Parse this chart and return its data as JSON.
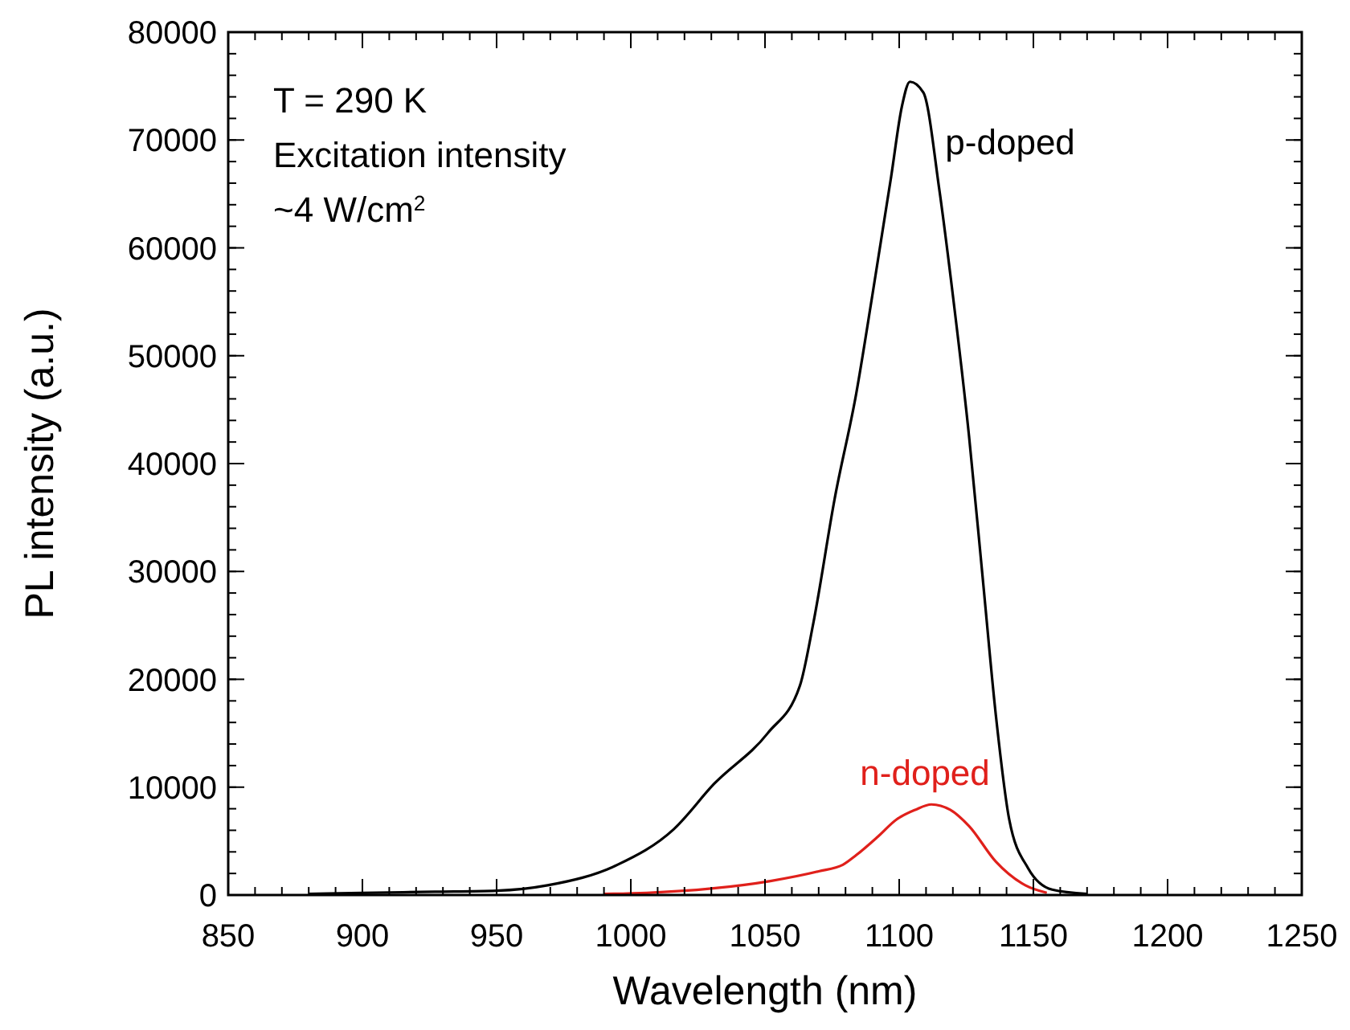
{
  "chart_data": {
    "type": "line",
    "xlabel": "Wavelength (nm)",
    "ylabel": "PL intensity (a.u.)",
    "xlim": [
      850,
      1250
    ],
    "xticks": [
      850,
      900,
      950,
      1000,
      1050,
      1100,
      1150,
      1200,
      1250
    ],
    "ylim": [
      0,
      80000
    ],
    "yticks": [
      0,
      10000,
      20000,
      30000,
      40000,
      50000,
      60000,
      70000,
      80000
    ],
    "grid": false,
    "legend": false,
    "marker": "none",
    "line_style": "solid",
    "annotations": [
      "T = 290 K",
      "Excitation intensity",
      "~4 W/cm$^{2}$"
    ],
    "series": [
      {
        "name": "p-doped",
        "color": "#000000",
        "x": [
          880,
          900,
          927,
          950,
          969,
          995,
          1016,
          1031,
          1051,
          1063,
          1068,
          1076,
          1084,
          1090,
          1097,
          1101,
          1104,
          1109,
          1115,
          1120,
          1126,
          1131,
          1136,
          1141,
          1148,
          1157,
          1170
        ],
        "values": [
          100,
          200,
          300,
          400,
          900,
          2800,
          6100,
          10300,
          15000,
          19400,
          25200,
          36800,
          46500,
          55600,
          66600,
          73100,
          75400,
          74400,
          65300,
          55600,
          42600,
          29700,
          16700,
          7000,
          2500,
          500,
          100
        ]
      },
      {
        "name": "n-doped",
        "color": "#e0201b",
        "x": [
          990,
          1006,
          1030,
          1052,
          1070,
          1079,
          1084,
          1092,
          1099,
          1106,
          1112,
          1119,
          1126,
          1136,
          1147,
          1155
        ],
        "values": [
          100,
          200,
          600,
          1300,
          2200,
          2800,
          3700,
          5400,
          7000,
          7900,
          8400,
          7900,
          6400,
          3100,
          900,
          200
        ]
      }
    ]
  }
}
